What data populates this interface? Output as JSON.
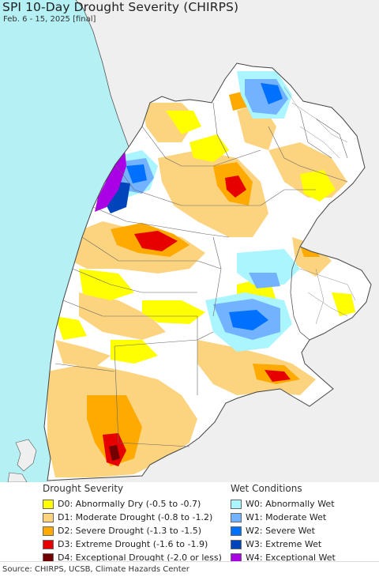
{
  "header": {
    "title": "SPI 10-Day Drought Severity (CHIRPS)",
    "subtitle": "Feb. 6 - 15, 2025 [final]"
  },
  "colors": {
    "ocean": "#b4f0f4",
    "outside_land": "#efefef",
    "land_normal": "#ffffff",
    "border": "#555555"
  },
  "legend": {
    "drought": {
      "heading": "Drought Severity",
      "items": [
        {
          "label": "D0: Abnormally Dry (-0.5 to -0.7)",
          "color": "#ffff00"
        },
        {
          "label": "D1: Moderate Drought (-0.8 to -1.2)",
          "color": "#fcd37f"
        },
        {
          "label": "D2: Severe Drought (-1.3 to -1.5)",
          "color": "#ffaa00"
        },
        {
          "label": "D3: Extreme Drought (-1.6 to -1.9)",
          "color": "#e60000"
        },
        {
          "label": "D4: Exceptional Drought (-2.0 or less)",
          "color": "#730000"
        }
      ]
    },
    "wet": {
      "heading": "Wet Conditions",
      "items": [
        {
          "label": "W0: Abnormally Wet",
          "color": "#aaf5ff"
        },
        {
          "label": "W1: Moderate Wet",
          "color": "#73b2ff"
        },
        {
          "label": "W2: Severe Wet",
          "color": "#0070ff"
        },
        {
          "label": "W3: Extreme Wet",
          "color": "#0044bb"
        },
        {
          "label": "W4: Exceptional Wet",
          "color": "#a900e6"
        }
      ]
    }
  },
  "footer": {
    "source": "Source: CHIRPS, UCSB, Climate Hazards Center"
  }
}
